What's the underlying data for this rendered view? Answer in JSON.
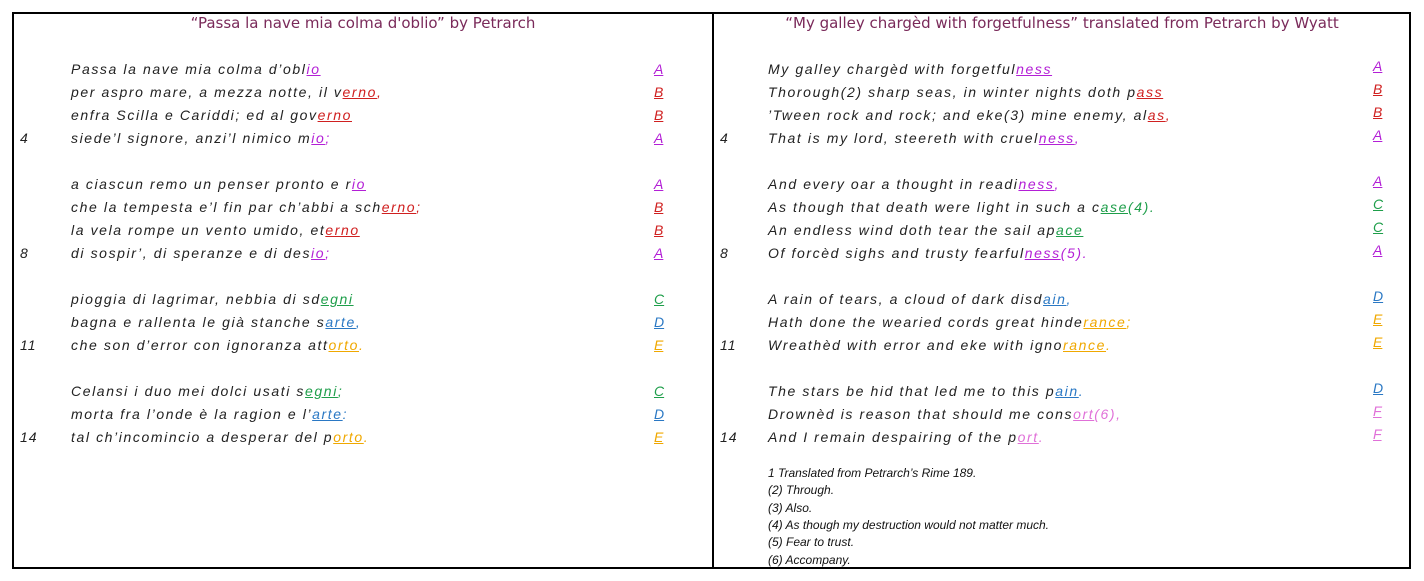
{
  "left": {
    "title": "“Passa la nave mia colma d'oblio” by Petrarch",
    "lines": [
      {
        "pre": "Passa la nave mia colma d’obl",
        "rhyme": "io",
        "post": "",
        "scheme": "A",
        "color": "#b31fd6"
      },
      {
        "pre": "per aspro mare, a mezza notte, il v",
        "rhyme": "erno",
        "post": ",",
        "scheme": "B",
        "color": "#d02020"
      },
      {
        "pre": "enfra Scilla e Cariddi; ed al gov",
        "rhyme": "erno",
        "post": "",
        "scheme": "B",
        "color": "#d02020"
      },
      {
        "pre": "siede’l signore, anzi’l nimico m",
        "rhyme": "io",
        "post": ";",
        "scheme": "A",
        "color": "#b31fd6"
      },
      {
        "pre": "a ciascun remo un penser pronto e r",
        "rhyme": "io",
        "post": "",
        "scheme": "A",
        "color": "#b31fd6"
      },
      {
        "pre": "che la tempesta e’l fin par ch’abbi a sch",
        "rhyme": "erno",
        "post": ";",
        "scheme": "B",
        "color": "#d02020"
      },
      {
        "pre": "la vela rompe un vento umido, et",
        "rhyme": "erno",
        "post": "",
        "scheme": "B",
        "color": "#d02020"
      },
      {
        "pre": "di sospir’, di speranze e di des",
        "rhyme": "io",
        "post": ";",
        "scheme": "A",
        "color": "#b31fd6"
      },
      {
        "pre": "pioggia di lagrimar, nebbia di sd",
        "rhyme": "egni",
        "post": "",
        "scheme": "C",
        "color": "#1e9e4a"
      },
      {
        "pre": "bagna e rallenta le già stanche s",
        "rhyme": "arte",
        "post": ",",
        "scheme": "D",
        "color": "#2a78c4"
      },
      {
        "pre": "che son d’error con ignoranza att",
        "rhyme": "orto",
        "post": ".",
        "scheme": "E",
        "color": "#f0a800"
      },
      {
        "pre": "Celansi i duo mei dolci usati s",
        "rhyme": "egni",
        "post": ";",
        "scheme": "C",
        "color": "#1e9e4a"
      },
      {
        "pre": "morta fra l’onde è la ragion e l’",
        "rhyme": "arte",
        "post": ":",
        "scheme": "D",
        "color": "#2a78c4"
      },
      {
        "pre": "tal ch’incomincio a desperar del p",
        "rhyme": "orto",
        "post": ".",
        "scheme": "E",
        "color": "#f0a800"
      }
    ],
    "numbers": [
      "4",
      "8",
      "11",
      "14"
    ]
  },
  "right": {
    "title": "“My galley chargèd with forgetfulness” translated from Petrarch by Wyatt",
    "lines": [
      {
        "pre": "My galley chargèd with forgetful",
        "rhyme": "ness",
        "post": "",
        "scheme": "A",
        "color": "#b31fd6"
      },
      {
        "pre": "Thorough(2) sharp seas, in winter nights doth p",
        "rhyme": "ass",
        "post": "",
        "scheme": "B",
        "color": "#d02020"
      },
      {
        "pre": "’Tween rock and rock; and eke(3) mine enemy, al",
        "rhyme": "as",
        "post": ",",
        "scheme": "B",
        "color": "#d02020"
      },
      {
        "pre": "That is my lord, steereth with cruel",
        "rhyme": "ness",
        "post": ",",
        "scheme": "A",
        "color": "#b31fd6"
      },
      {
        "pre": "And every oar a thought in readi",
        "rhyme": "ness",
        "post": ",",
        "scheme": "A",
        "color": "#b31fd6"
      },
      {
        "pre": "As though that death were light in such a c",
        "rhyme": "ase",
        "post": "(4).",
        "scheme": "C",
        "color": "#1e9e4a"
      },
      {
        "pre": "An endless wind doth tear the sail ap",
        "rhyme": "ace",
        "post": "",
        "scheme": "C",
        "color": "#1e9e4a"
      },
      {
        "pre": "Of forcèd sighs and trusty fearful",
        "rhyme": "ness",
        "post": "(5).",
        "scheme": "A",
        "color": "#b31fd6"
      },
      {
        "pre": "A rain of tears, a cloud of dark disd",
        "rhyme": "ain",
        "post": ",",
        "scheme": "D",
        "color": "#2a78c4"
      },
      {
        "pre": "Hath done the wearied cords great hinde",
        "rhyme": "rance",
        "post": ";",
        "scheme": "E",
        "color": "#f0a800"
      },
      {
        "pre": "Wreathèd with error and eke with igno",
        "rhyme": "rance",
        "post": ".",
        "scheme": "E",
        "color": "#f0a800"
      },
      {
        "pre": "The stars be hid that led me to this p",
        "rhyme": "ain",
        "post": ".",
        "scheme": "D",
        "color": "#2a78c4"
      },
      {
        "pre": "Drownèd is reason that should me cons",
        "rhyme": "ort",
        "post": "(6),",
        "scheme": "F",
        "color": "#e070d8"
      },
      {
        "pre": "And I remain despairing of the p",
        "rhyme": "ort",
        "post": ".",
        "scheme": "F",
        "color": "#e070d8"
      }
    ],
    "numbers": [
      "4",
      "8",
      "11",
      "14"
    ],
    "notes": [
      "1 Translated from Petrarch’s Rime 189.",
      "(2) Through.",
      "(3) Also.",
      "(4) As though my destruction would not matter much.",
      "(5) Fear to trust.",
      "(6) Accompany."
    ]
  }
}
